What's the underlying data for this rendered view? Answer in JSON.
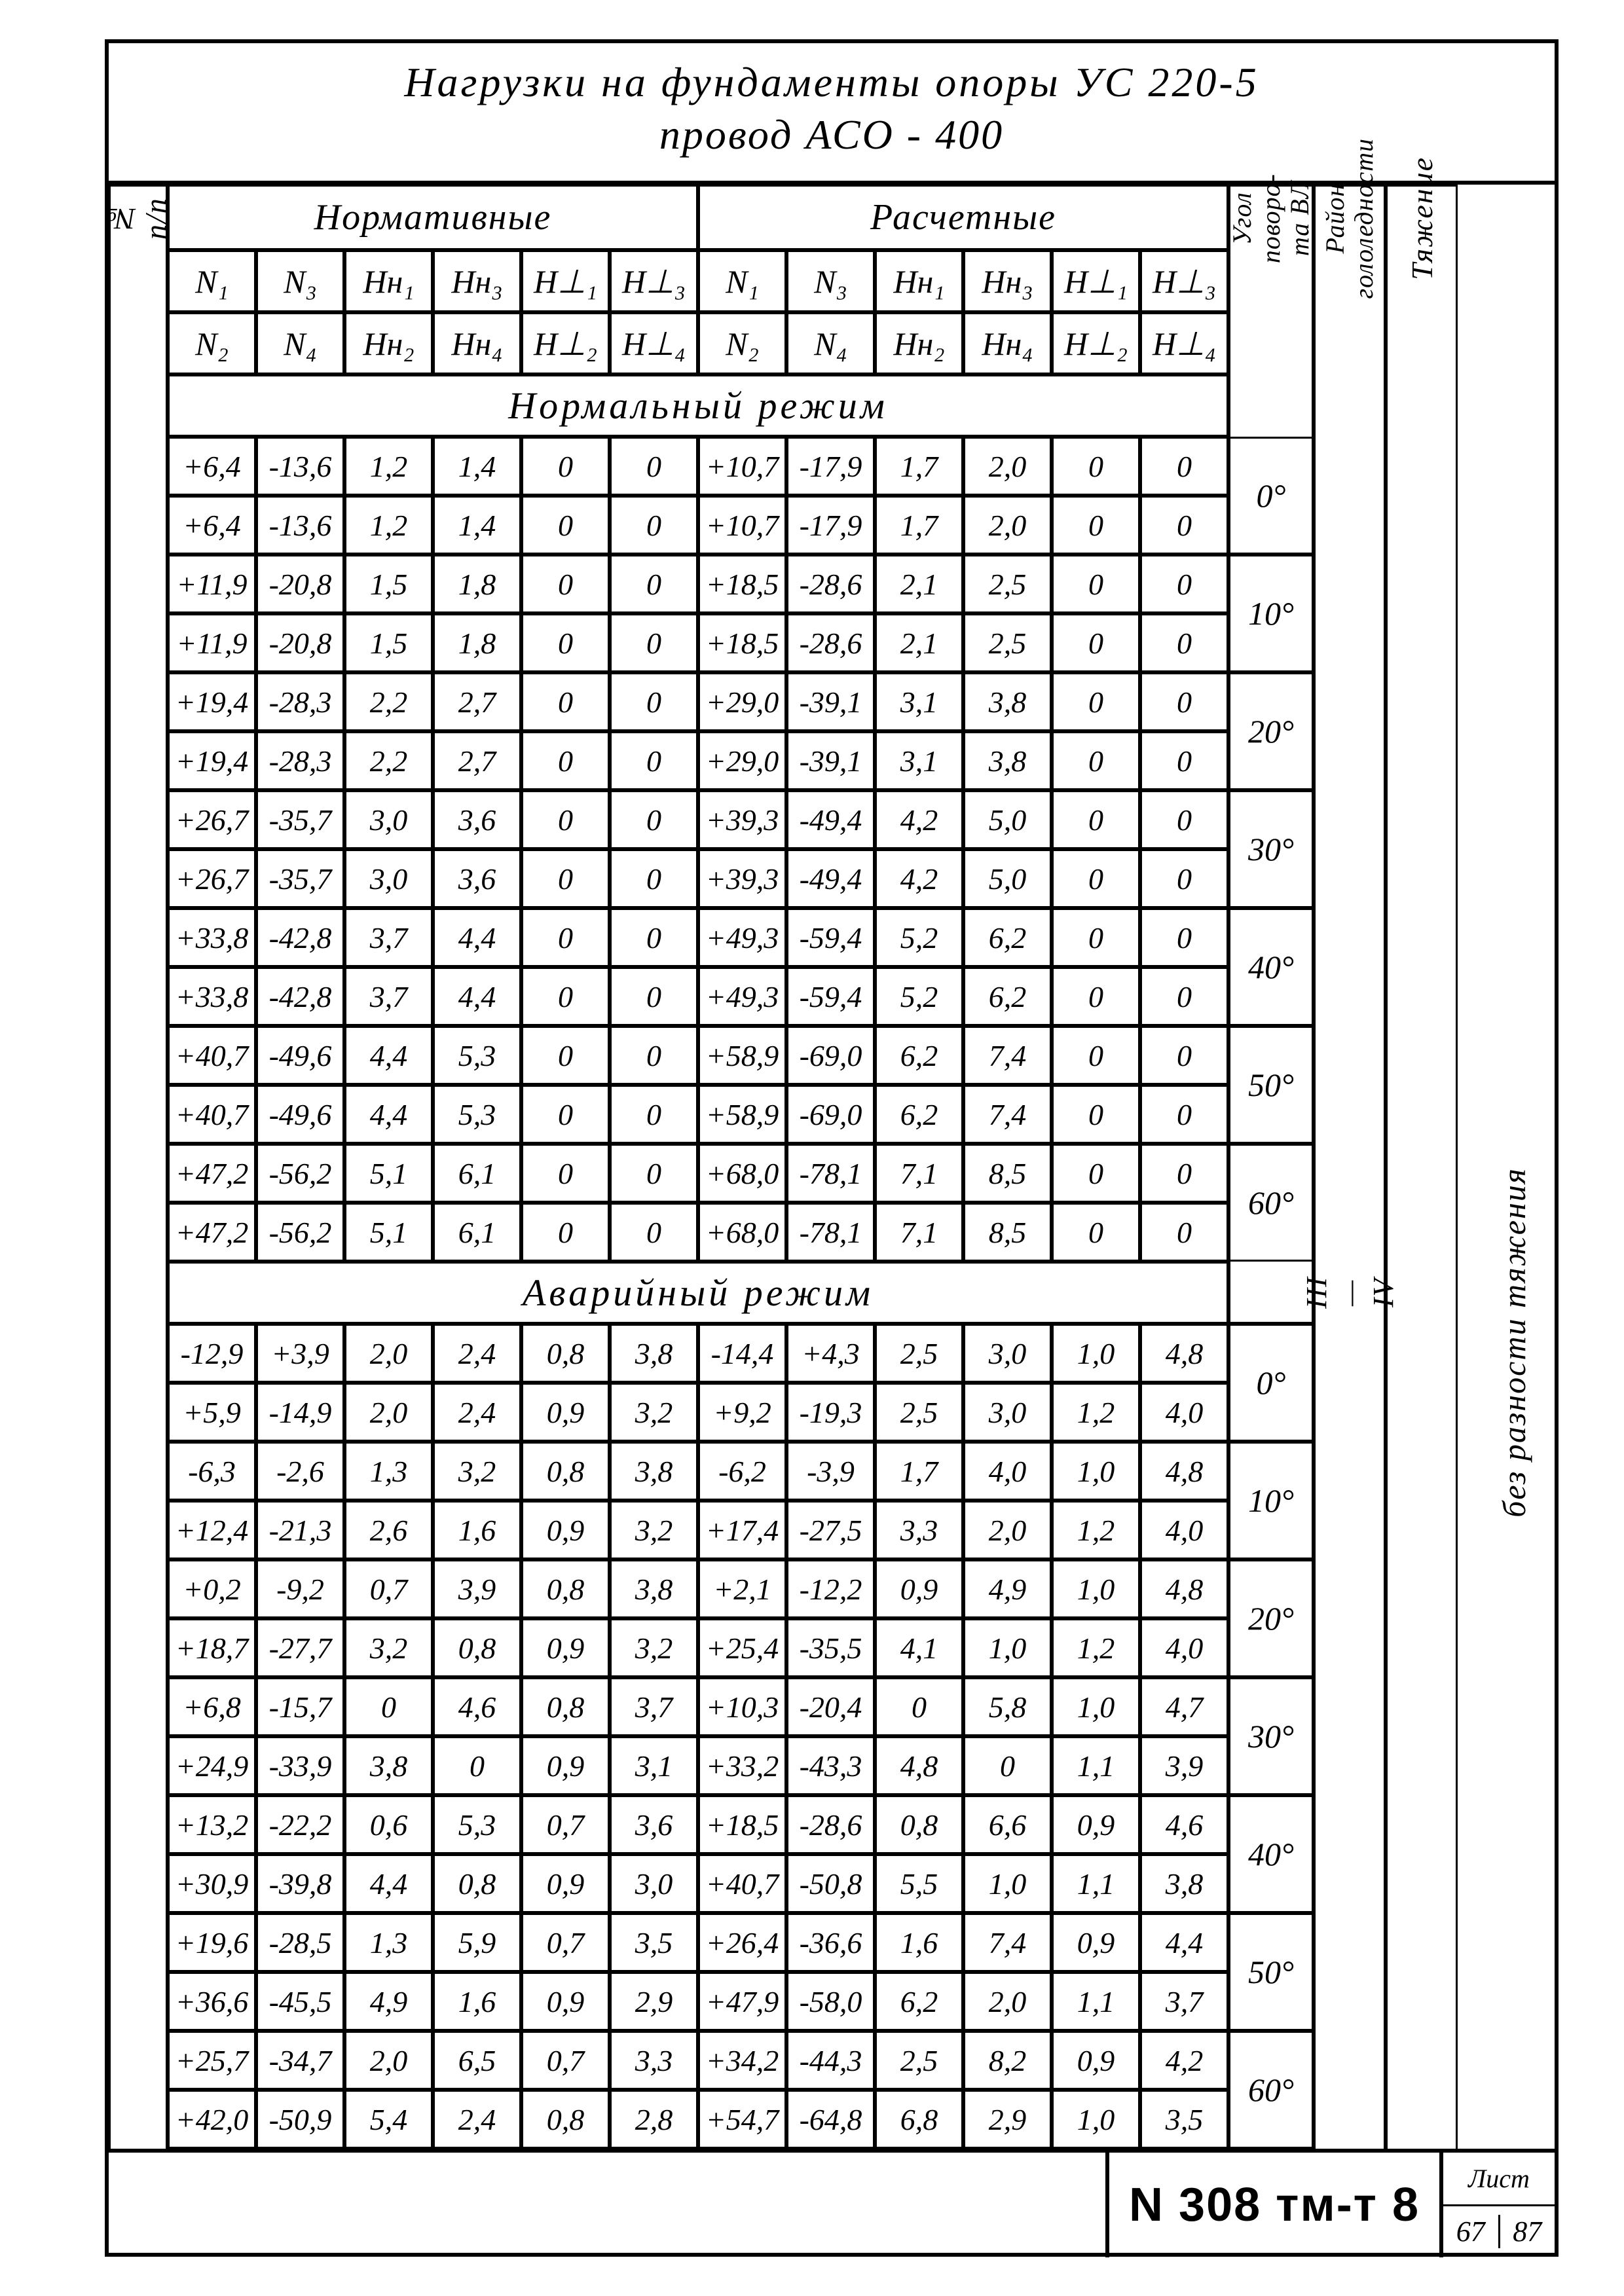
{
  "title": {
    "line1": "Нагрузки   на   фундаменты   опоры   УС 220-5",
    "line2": "провод   АСО - 400"
  },
  "col_nn_top": "№ п/п",
  "col_nn_sym": "№",
  "group_headers": {
    "norm": "Нормативные",
    "calc": "Расчетные"
  },
  "side_headers": {
    "angle": "Угол поворо-\nта ВЛ",
    "region": "Район\nгололедности",
    "tension": "Тяжение"
  },
  "sym": {
    "r1": [
      "N₁",
      "N₃",
      "Hн₁",
      "Hн₃",
      "H⊥₁",
      "H⊥₃",
      "N₁",
      "N₃",
      "Hн₁",
      "Hн₃",
      "H⊥₁",
      "H⊥₃"
    ],
    "r2": [
      "N₂",
      "N₄",
      "Hн₂",
      "Hн₄",
      "H⊥₂",
      "H⊥₄",
      "N₂",
      "N₄",
      "Hн₂",
      "Hн₄",
      "H⊥₂",
      "H⊥₄"
    ]
  },
  "sections": {
    "normal": "Нормальный   режим",
    "emerg": "Аварийный   режим"
  },
  "side_note_bottom": "без   разности   тяжения",
  "side_note_mid": "III — IV",
  "normal_rows": [
    {
      "angle": "0°",
      "r1": [
        "+6,4",
        "-13,6",
        "1,2",
        "1,4",
        "0",
        "0",
        "+10,7",
        "-17,9",
        "1,7",
        "2,0",
        "0",
        "0"
      ],
      "r2": [
        "+6,4",
        "-13,6",
        "1,2",
        "1,4",
        "0",
        "0",
        "+10,7",
        "-17,9",
        "1,7",
        "2,0",
        "0",
        "0"
      ]
    },
    {
      "angle": "10°",
      "r1": [
        "+11,9",
        "-20,8",
        "1,5",
        "1,8",
        "0",
        "0",
        "+18,5",
        "-28,6",
        "2,1",
        "2,5",
        "0",
        "0"
      ],
      "r2": [
        "+11,9",
        "-20,8",
        "1,5",
        "1,8",
        "0",
        "0",
        "+18,5",
        "-28,6",
        "2,1",
        "2,5",
        "0",
        "0"
      ]
    },
    {
      "angle": "20°",
      "r1": [
        "+19,4",
        "-28,3",
        "2,2",
        "2,7",
        "0",
        "0",
        "+29,0",
        "-39,1",
        "3,1",
        "3,8",
        "0",
        "0"
      ],
      "r2": [
        "+19,4",
        "-28,3",
        "2,2",
        "2,7",
        "0",
        "0",
        "+29,0",
        "-39,1",
        "3,1",
        "3,8",
        "0",
        "0"
      ]
    },
    {
      "angle": "30°",
      "r1": [
        "+26,7",
        "-35,7",
        "3,0",
        "3,6",
        "0",
        "0",
        "+39,3",
        "-49,4",
        "4,2",
        "5,0",
        "0",
        "0"
      ],
      "r2": [
        "+26,7",
        "-35,7",
        "3,0",
        "3,6",
        "0",
        "0",
        "+39,3",
        "-49,4",
        "4,2",
        "5,0",
        "0",
        "0"
      ]
    },
    {
      "angle": "40°",
      "r1": [
        "+33,8",
        "-42,8",
        "3,7",
        "4,4",
        "0",
        "0",
        "+49,3",
        "-59,4",
        "5,2",
        "6,2",
        "0",
        "0"
      ],
      "r2": [
        "+33,8",
        "-42,8",
        "3,7",
        "4,4",
        "0",
        "0",
        "+49,3",
        "-59,4",
        "5,2",
        "6,2",
        "0",
        "0"
      ]
    },
    {
      "angle": "50°",
      "r1": [
        "+40,7",
        "-49,6",
        "4,4",
        "5,3",
        "0",
        "0",
        "+58,9",
        "-69,0",
        "6,2",
        "7,4",
        "0",
        "0"
      ],
      "r2": [
        "+40,7",
        "-49,6",
        "4,4",
        "5,3",
        "0",
        "0",
        "+58,9",
        "-69,0",
        "6,2",
        "7,4",
        "0",
        "0"
      ]
    },
    {
      "angle": "60°",
      "r1": [
        "+47,2",
        "-56,2",
        "5,1",
        "6,1",
        "0",
        "0",
        "+68,0",
        "-78,1",
        "7,1",
        "8,5",
        "0",
        "0"
      ],
      "r2": [
        "+47,2",
        "-56,2",
        "5,1",
        "6,1",
        "0",
        "0",
        "+68,0",
        "-78,1",
        "7,1",
        "8,5",
        "0",
        "0"
      ]
    }
  ],
  "emerg_rows": [
    {
      "angle": "0°",
      "r1": [
        "-12,9",
        "+3,9",
        "2,0",
        "2,4",
        "0,8",
        "3,8",
        "-14,4",
        "+4,3",
        "2,5",
        "3,0",
        "1,0",
        "4,8"
      ],
      "r2": [
        "+5,9",
        "-14,9",
        "2,0",
        "2,4",
        "0,9",
        "3,2",
        "+9,2",
        "-19,3",
        "2,5",
        "3,0",
        "1,2",
        "4,0"
      ]
    },
    {
      "angle": "10°",
      "r1": [
        "-6,3",
        "-2,6",
        "1,3",
        "3,2",
        "0,8",
        "3,8",
        "-6,2",
        "-3,9",
        "1,7",
        "4,0",
        "1,0",
        "4,8"
      ],
      "r2": [
        "+12,4",
        "-21,3",
        "2,6",
        "1,6",
        "0,9",
        "3,2",
        "+17,4",
        "-27,5",
        "3,3",
        "2,0",
        "1,2",
        "4,0"
      ]
    },
    {
      "angle": "20°",
      "r1": [
        "+0,2",
        "-9,2",
        "0,7",
        "3,9",
        "0,8",
        "3,8",
        "+2,1",
        "-12,2",
        "0,9",
        "4,9",
        "1,0",
        "4,8"
      ],
      "r2": [
        "+18,7",
        "-27,7",
        "3,2",
        "0,8",
        "0,9",
        "3,2",
        "+25,4",
        "-35,5",
        "4,1",
        "1,0",
        "1,2",
        "4,0"
      ]
    },
    {
      "angle": "30°",
      "r1": [
        "+6,8",
        "-15,7",
        "0",
        "4,6",
        "0,8",
        "3,7",
        "+10,3",
        "-20,4",
        "0",
        "5,8",
        "1,0",
        "4,7"
      ],
      "r2": [
        "+24,9",
        "-33,9",
        "3,8",
        "0",
        "0,9",
        "3,1",
        "+33,2",
        "-43,3",
        "4,8",
        "0",
        "1,1",
        "3,9"
      ]
    },
    {
      "angle": "40°",
      "r1": [
        "+13,2",
        "-22,2",
        "0,6",
        "5,3",
        "0,7",
        "3,6",
        "+18,5",
        "-28,6",
        "0,8",
        "6,6",
        "0,9",
        "4,6"
      ],
      "r2": [
        "+30,9",
        "-39,8",
        "4,4",
        "0,8",
        "0,9",
        "3,0",
        "+40,7",
        "-50,8",
        "5,5",
        "1,0",
        "1,1",
        "3,8"
      ]
    },
    {
      "angle": "50°",
      "r1": [
        "+19,6",
        "-28,5",
        "1,3",
        "5,9",
        "0,7",
        "3,5",
        "+26,4",
        "-36,6",
        "1,6",
        "7,4",
        "0,9",
        "4,4"
      ],
      "r2": [
        "+36,6",
        "-45,5",
        "4,9",
        "1,6",
        "0,9",
        "2,9",
        "+47,9",
        "-58,0",
        "6,2",
        "2,0",
        "1,1",
        "3,7"
      ]
    },
    {
      "angle": "60°",
      "r1": [
        "+25,7",
        "-34,7",
        "2,0",
        "6,5",
        "0,7",
        "3,3",
        "+34,2",
        "-44,3",
        "2,5",
        "8,2",
        "0,9",
        "4,2"
      ],
      "r2": [
        "+42,0",
        "-50,9",
        "5,4",
        "2,4",
        "0,8",
        "2,8",
        "+54,7",
        "-64,8",
        "6,8",
        "2,9",
        "1,0",
        "3,5"
      ]
    }
  ],
  "footer": {
    "doc_no": "N 308 тм-т 8",
    "page_label": "Лист",
    "page_left": "67",
    "page_right": "87"
  },
  "style": {
    "border_color": "#000000",
    "bg": "#ffffff",
    "text": "#000000",
    "title_fs": 64,
    "header_fs": 56,
    "sym_fs": 50,
    "val_fs": 46,
    "section_fs": 58,
    "angle_fs": 50,
    "vtext_fs": 46
  }
}
